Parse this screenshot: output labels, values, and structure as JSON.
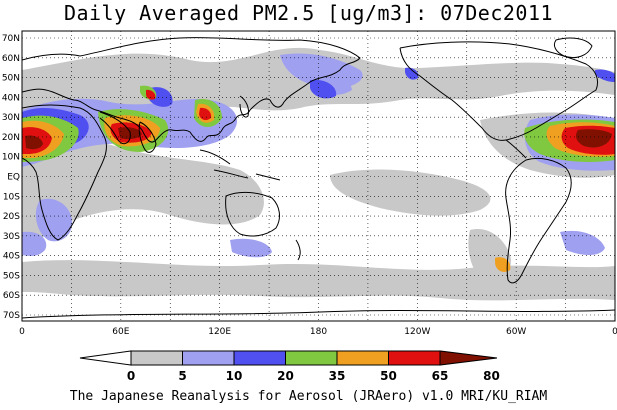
{
  "title": "Daily Averaged PM2.5 [ug/m3]: 07Dec2011",
  "footer": "The Japanese Reanalysis for Aerosol (JRAero) v1.0 MRI/KU_RIAM",
  "map": {
    "lat_labels": [
      "70N",
      "60N",
      "50N",
      "40N",
      "30N",
      "20N",
      "10N",
      "EQ",
      "10S",
      "20S",
      "30S",
      "40S",
      "50S",
      "60S",
      "70S"
    ],
    "lon_labels": [
      "0",
      "60E",
      "120E",
      "180",
      "120W",
      "60W",
      "0"
    ],
    "land_color": "#000000",
    "grid": "dotted"
  },
  "colorbar": {
    "levels": [
      "0",
      "5",
      "10",
      "20",
      "35",
      "50",
      "65",
      "80"
    ],
    "colors": [
      "#ffffff",
      "#c8c8c8",
      "#a0a0f0",
      "#5050f0",
      "#80c840",
      "#f0a020",
      "#e01010",
      "#801000"
    ]
  }
}
